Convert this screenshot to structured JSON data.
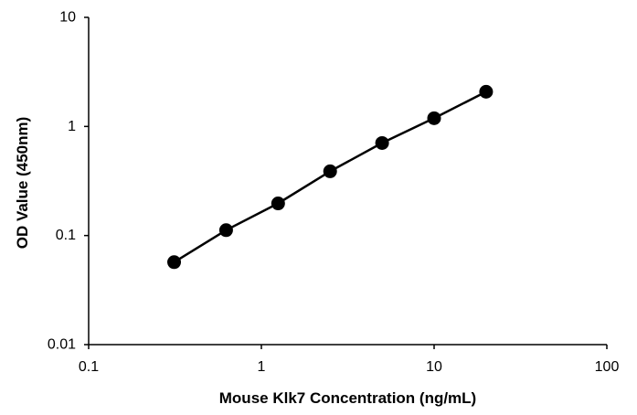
{
  "chart_data": {
    "type": "line",
    "title": "",
    "xlabel": "Mouse Klk7 Concentration (ng/mL)",
    "ylabel": "OD Value (450nm)",
    "x_scale": "log",
    "y_scale": "log",
    "xlim": [
      0.1,
      100
    ],
    "ylim": [
      0.01,
      10
    ],
    "x_ticks": [
      0.1,
      1,
      10,
      100
    ],
    "x_tick_labels": [
      "0.1",
      "1",
      "10",
      "100"
    ],
    "y_ticks": [
      0.01,
      0.1,
      1,
      10
    ],
    "y_tick_labels": [
      "0.01",
      "0.1",
      "1",
      "10"
    ],
    "grid": false,
    "legend": "none",
    "series": [
      {
        "x": [
          0.3125,
          0.625,
          1.25,
          2.5,
          5,
          10,
          20
        ],
        "y": [
          0.057,
          0.112,
          0.197,
          0.388,
          0.705,
          1.19,
          2.08
        ],
        "color": "#000000",
        "marker": "circle"
      }
    ]
  }
}
